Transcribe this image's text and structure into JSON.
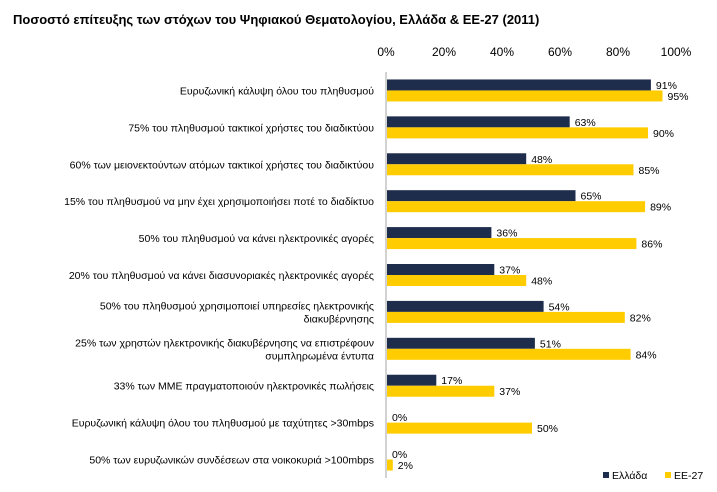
{
  "chart_data": {
    "type": "bar",
    "orientation": "horizontal",
    "title": "Ποσοστό επίτευξης των στόχων του Ψηφιακού Θεματολογίου, Ελλάδα & ΕΕ-27 (2011)",
    "xlabel": "",
    "ylabel": "",
    "xlim": [
      0,
      100
    ],
    "x_ticks": [
      "0%",
      "20%",
      "40%",
      "60%",
      "80%",
      "100%"
    ],
    "grid": false,
    "legend_position": "bottom-right",
    "categories": [
      [
        "Ευρυζωνική κάλυψη όλου του πληθυσμού"
      ],
      [
        "75% του πληθυσμού  τακτικοί χρήστες του διαδικτύου"
      ],
      [
        "60% των μειονεκτούντων ατόμων  τακτικοί χρήστες του διαδικτύου"
      ],
      [
        "15% του πληθυσμού  να μην έχει χρησιμοποιήσει ποτέ το διαδίκτυο"
      ],
      [
        "50% του πληθυσμού  να κάνει ηλεκτρονικές αγορές"
      ],
      [
        "20% του πληθυσμού  να κάνει διασυνοριακές ηλεκτρονικές αγορές"
      ],
      [
        "50% του πληθυσμού  χρησιμοποιεί υπηρεσίες ηλεκτρονικής",
        "διακυβέρνησης"
      ],
      [
        "25% των χρηστών ηλεκτρονικής διακυβέρνησης να επιστρέφουν",
        "συμπληρωμένα έντυπα"
      ],
      [
        "33% των ΜΜΕ πραγματοποιούν  ηλεκτρονικές πωλήσεις"
      ],
      [
        "Ευρυζωνική κάλυψη όλου του πληθυσμού  με ταχύτητες >30mbps"
      ],
      [
        "50% των ευρυζωνικών συνδέσεων στα νοικοκυριά >100mbps"
      ]
    ],
    "series": [
      {
        "name": "Ελλάδα",
        "color": "#1f2d4d",
        "values": [
          91,
          63,
          48,
          65,
          36,
          37,
          54,
          51,
          17,
          0,
          0
        ],
        "labels": [
          "91%",
          "63%",
          "48%",
          "65%",
          "36%",
          "37%",
          "54%",
          "51%",
          "17%",
          "0%",
          "0%"
        ]
      },
      {
        "name": "ΕΕ-27",
        "color": "#ffcc00",
        "values": [
          95,
          90,
          85,
          89,
          86,
          48,
          82,
          84,
          37,
          50,
          2
        ],
        "labels": [
          "95%",
          "90%",
          "85%",
          "89%",
          "86%",
          "48%",
          "82%",
          "84%",
          "37%",
          "50%",
          "2%"
        ]
      }
    ]
  }
}
